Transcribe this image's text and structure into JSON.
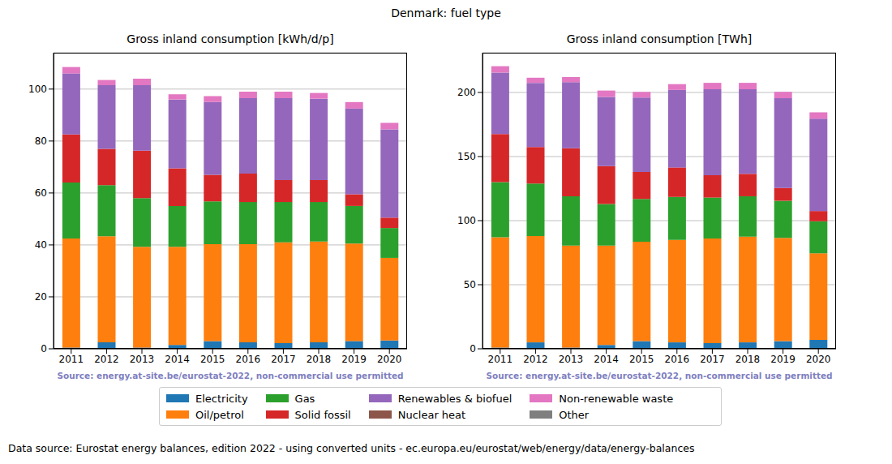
{
  "title": "Denmark: fuel type",
  "footer": "Data source: Eurostat energy balances, edition 2022 - using converted units - ec.europa.eu/eurostat/web/energy/data/energy-balances",
  "legend": "bottom",
  "chart_data": [
    {
      "type": "bar",
      "stacked": true,
      "grid": true,
      "title": "Gross inland consumption [kWh/d/p]",
      "source": "Source: energy.at-site.be/eurostat-2022, non-commercial use permitted",
      "categories": [
        "2011",
        "2012",
        "2013",
        "2014",
        "2015",
        "2016",
        "2017",
        "2018",
        "2019",
        "2020"
      ],
      "ylim": [
        0,
        114
      ],
      "yticks": [
        0,
        20,
        40,
        60,
        80,
        100
      ],
      "series": [
        {
          "name": "Electricity",
          "color": "#1f77b4",
          "values": [
            0.5,
            2.5,
            0.5,
            1.5,
            3,
            2.5,
            2.2,
            2.5,
            3,
            3.2
          ]
        },
        {
          "name": "Oil/petrol",
          "color": "#ff7f0e",
          "values": [
            42,
            40.8,
            38.8,
            37.8,
            37.3,
            37.8,
            38.8,
            38.8,
            37.5,
            31.8
          ]
        },
        {
          "name": "Gas",
          "color": "#2ca02c",
          "values": [
            21.5,
            19.7,
            18.7,
            15.7,
            16.5,
            16.2,
            15.5,
            15.2,
            14.5,
            11.5
          ]
        },
        {
          "name": "Solid fossil",
          "color": "#d62728",
          "values": [
            18.5,
            14,
            18.3,
            14.5,
            10.2,
            11,
            8.5,
            8.5,
            4.5,
            4
          ]
        },
        {
          "name": "Renewables & biofuel",
          "color": "#9467bd",
          "values": [
            23.5,
            24.5,
            25.2,
            26.5,
            28,
            29,
            31.5,
            31.3,
            33,
            34
          ]
        },
        {
          "name": "Nuclear heat",
          "color": "#8c564b",
          "values": [
            0,
            0,
            0,
            0,
            0,
            0,
            0,
            0,
            0,
            0
          ]
        },
        {
          "name": "Non-renewable waste",
          "color": "#e377c2",
          "values": [
            2.5,
            2,
            2.5,
            2,
            2.3,
            2.5,
            2.5,
            2.2,
            2.5,
            2.5
          ]
        },
        {
          "name": "Other",
          "color": "#7f7f7f",
          "values": [
            0,
            0,
            0,
            0,
            0,
            0,
            0,
            0,
            0,
            0
          ]
        }
      ]
    },
    {
      "type": "bar",
      "stacked": true,
      "grid": true,
      "title": "Gross inland consumption [TWh]",
      "source": "Source: energy.at-site.be/eurostat-2022, non-commercial use permitted",
      "categories": [
        "2011",
        "2012",
        "2013",
        "2014",
        "2015",
        "2016",
        "2017",
        "2018",
        "2019",
        "2020"
      ],
      "ylim": [
        0,
        231
      ],
      "yticks": [
        0,
        50,
        100,
        150,
        200
      ],
      "series": [
        {
          "name": "Electricity",
          "color": "#1f77b4",
          "values": [
            1,
            5,
            1,
            3,
            6,
            5,
            4.5,
            5,
            6,
            7
          ]
        },
        {
          "name": "Oil/petrol",
          "color": "#ff7f0e",
          "values": [
            86,
            83,
            79.5,
            77.5,
            77.5,
            80,
            81.5,
            82.5,
            80.5,
            67.5
          ]
        },
        {
          "name": "Gas",
          "color": "#2ca02c",
          "values": [
            43,
            41,
            38.5,
            32.5,
            33.5,
            33.5,
            32,
            31.5,
            29,
            25
          ]
        },
        {
          "name": "Solid fossil",
          "color": "#d62728",
          "values": [
            37.5,
            28.5,
            37.5,
            29.5,
            21,
            23,
            17.5,
            17.5,
            10,
            8
          ]
        },
        {
          "name": "Renewables & biofuel",
          "color": "#9467bd",
          "values": [
            48,
            50,
            51.5,
            54,
            58,
            60.5,
            67,
            66,
            70,
            72
          ]
        },
        {
          "name": "Nuclear heat",
          "color": "#8c564b",
          "values": [
            0,
            0,
            0,
            0,
            0,
            0,
            0,
            0,
            0,
            0
          ]
        },
        {
          "name": "Non-renewable waste",
          "color": "#e377c2",
          "values": [
            5,
            4,
            4,
            5,
            4.5,
            4.5,
            5,
            5,
            5,
            5
          ]
        },
        {
          "name": "Other",
          "color": "#7f7f7f",
          "values": [
            0,
            0,
            0,
            0,
            0,
            0,
            0,
            0,
            0,
            0
          ]
        }
      ]
    }
  ]
}
